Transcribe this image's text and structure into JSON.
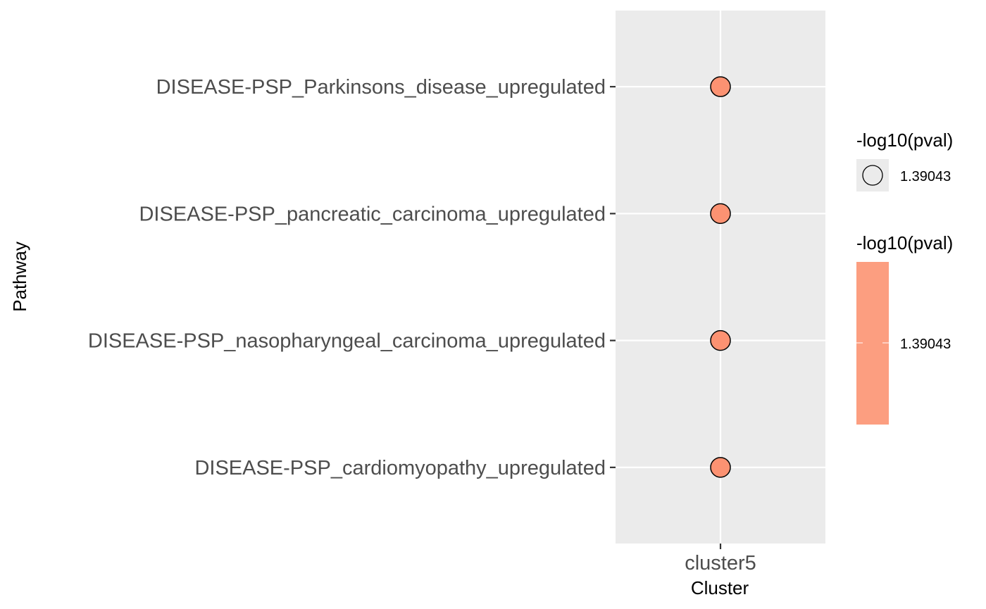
{
  "chart_data": {
    "type": "scatter",
    "title": "",
    "xlabel": "Cluster",
    "ylabel": "Pathway",
    "x_categories": [
      "cluster5"
    ],
    "y_categories": [
      "DISEASE-PSP_cardiomyopathy_upregulated",
      "DISEASE-PSP_nasopharyngeal_carcinoma_upregulated",
      "DISEASE-PSP_pancreatic_carcinoma_upregulated",
      "DISEASE-PSP_Parkinsons_disease_upregulated"
    ],
    "points": [
      {
        "x": "cluster5",
        "y": "DISEASE-PSP_Parkinsons_disease_upregulated",
        "neg_log10_pval": 1.39043
      },
      {
        "x": "cluster5",
        "y": "DISEASE-PSP_pancreatic_carcinoma_upregulated",
        "neg_log10_pval": 1.39043
      },
      {
        "x": "cluster5",
        "y": "DISEASE-PSP_nasopharyngeal_carcinoma_upregulated",
        "neg_log10_pval": 1.39043
      },
      {
        "x": "cluster5",
        "y": "DISEASE-PSP_cardiomyopathy_upregulated",
        "neg_log10_pval": 1.39043
      }
    ],
    "legends": {
      "size": {
        "title": "-log10(pval)",
        "label": "1.39043"
      },
      "color": {
        "title": "-log10(pval)",
        "label": "1.39043"
      }
    },
    "grid": true,
    "legend_position": "right"
  },
  "colors": {
    "panel_background": "#ebebeb",
    "grid": "#ffffff",
    "point_fill": "#fc9272",
    "colorbar_fill": "#fc9e80",
    "point_stroke": "#000000"
  }
}
